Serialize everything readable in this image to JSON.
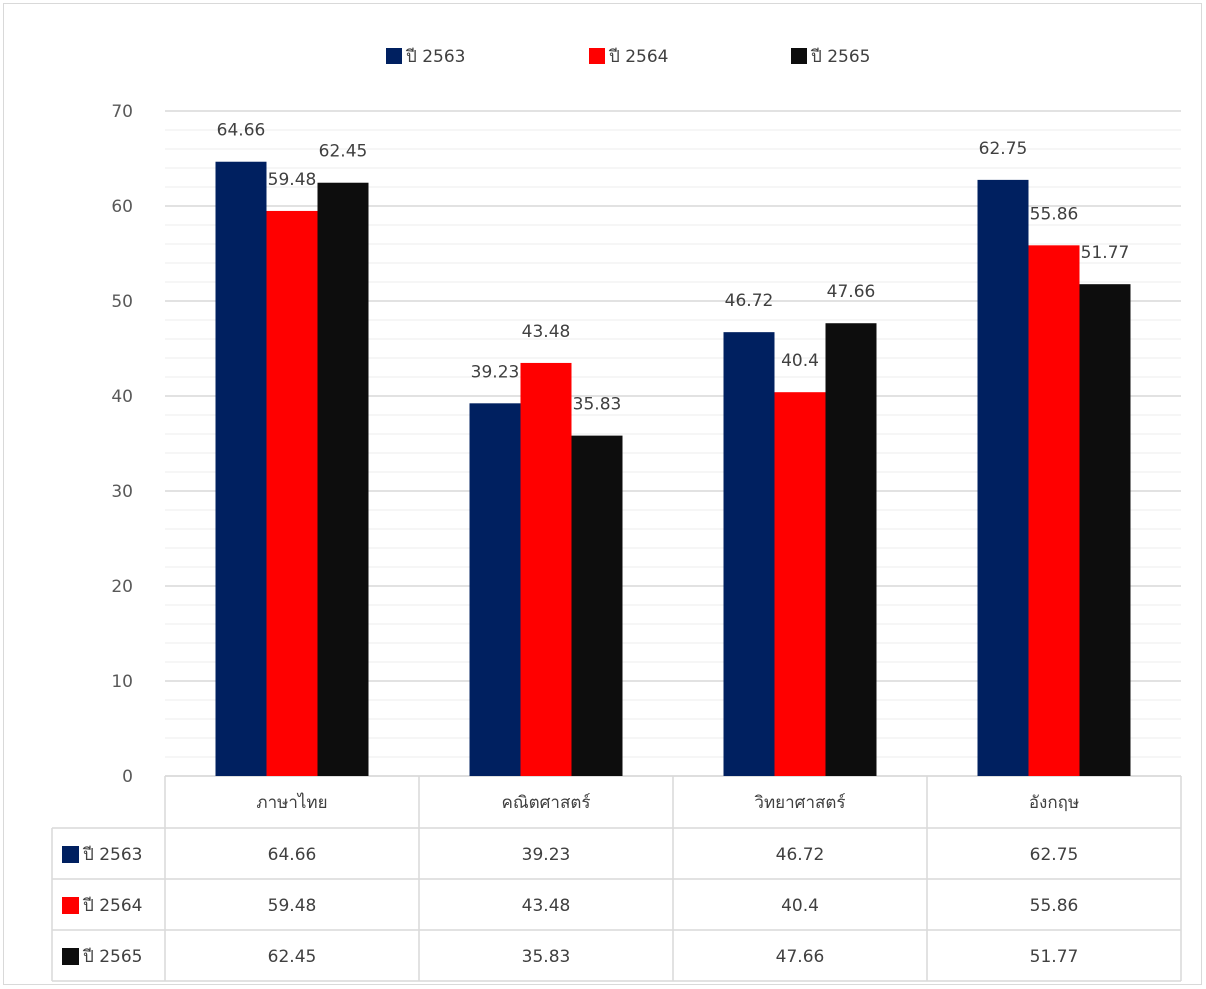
{
  "chart_data": {
    "type": "bar",
    "title": "",
    "xlabel": "",
    "ylabel": "",
    "categories": [
      "ภาษาไทย",
      "คณิตศาสตร์",
      "วิทยาศาสตร์",
      "อังกฤษ"
    ],
    "series": [
      {
        "name": "ปี 2563",
        "color": "#002060",
        "values": [
          64.66,
          39.23,
          46.72,
          62.75
        ]
      },
      {
        "name": "ปี 2564",
        "color": "#ff0000",
        "values": [
          59.48,
          43.48,
          40.4,
          55.86
        ]
      },
      {
        "name": "ปี 2565",
        "color": "#0d0d0d",
        "values": [
          62.45,
          35.83,
          47.66,
          51.77
        ]
      }
    ],
    "ylim": [
      0,
      70
    ],
    "yticks": [
      0,
      10,
      20,
      30,
      40,
      50,
      60,
      70
    ],
    "grid": true,
    "legend": "top-center",
    "data_table": true
  }
}
